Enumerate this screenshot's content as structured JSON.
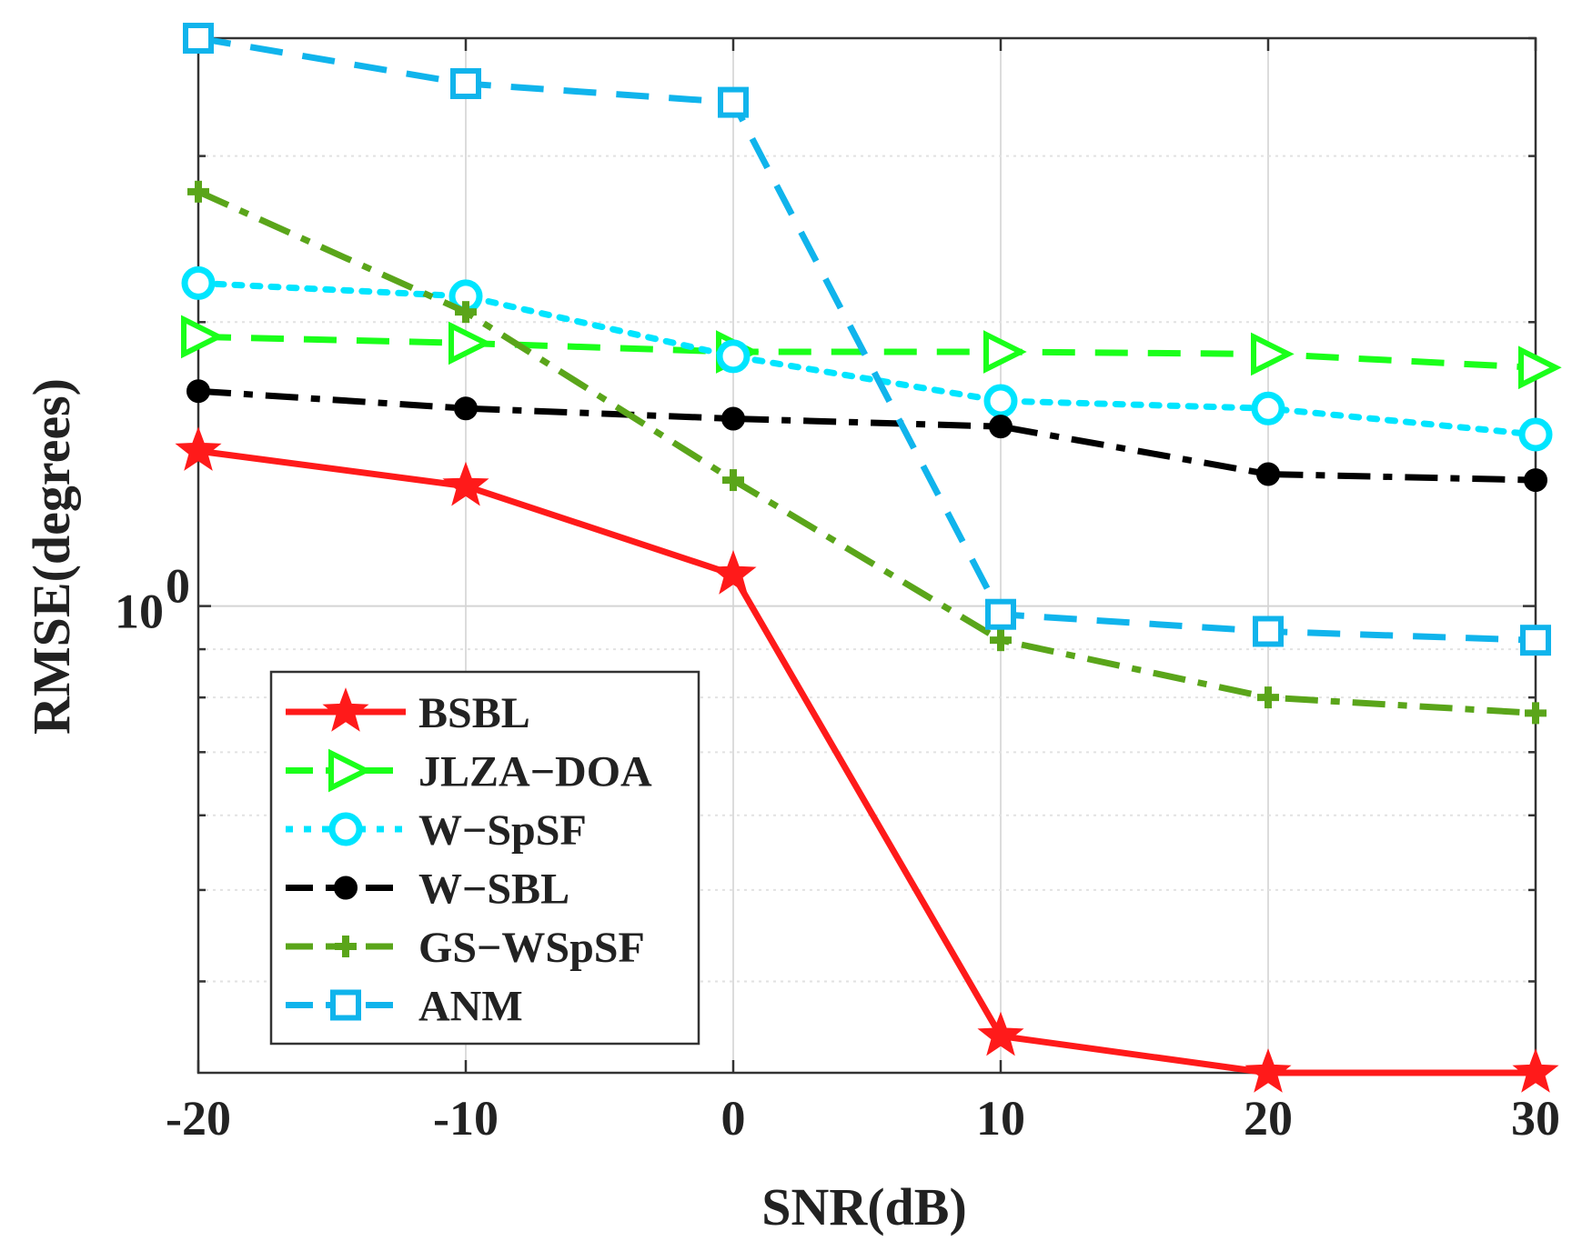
{
  "chart_data": {
    "type": "line",
    "title": "",
    "xlabel": "SNR(dB)",
    "ylabel": "RMSE(degrees)",
    "yscale": "log",
    "x": [
      -20,
      -10,
      0,
      10,
      20,
      30
    ],
    "xlim": [
      -20,
      30
    ],
    "ylim": [
      0.32,
      4.0
    ],
    "xticks": [
      -20,
      -10,
      0,
      10,
      20,
      30
    ],
    "xtick_labels": [
      "-20",
      "-10",
      "0",
      "10",
      "20",
      "30"
    ],
    "yticks": [
      1
    ],
    "ytick_labels": [
      {
        "base": "10",
        "exp": "0"
      }
    ],
    "grid": true,
    "legend": "bottom-left",
    "series": [
      {
        "name": "BSBL",
        "color": "#ff1a1a",
        "marker": "star",
        "dash": "solid",
        "values": [
          1.46,
          1.34,
          1.08,
          0.35,
          0.32,
          0.32
        ]
      },
      {
        "name": "JLZA−DOA",
        "color": "#1aff1a",
        "marker": "triangle-right",
        "dash": "dash",
        "values": [
          1.93,
          1.9,
          1.86,
          1.86,
          1.85,
          1.79
        ]
      },
      {
        "name": "W−SpSF",
        "color": "#00e5ff",
        "marker": "circle",
        "dash": "dot",
        "values": [
          2.2,
          2.13,
          1.84,
          1.65,
          1.62,
          1.52
        ]
      },
      {
        "name": "W−SBL",
        "color": "#000000",
        "marker": "dot",
        "dash": "dashdot",
        "values": [
          1.69,
          1.62,
          1.58,
          1.55,
          1.38,
          1.36
        ]
      },
      {
        "name": "GS−WSpSF",
        "color": "#5aa51a",
        "marker": "plus",
        "dash": "dashdot",
        "values": [
          2.75,
          2.05,
          1.36,
          0.92,
          0.8,
          0.77
        ]
      },
      {
        "name": "ANM",
        "color": "#10b4ec",
        "marker": "square",
        "dash": "dash",
        "values": [
          4.0,
          3.58,
          3.42,
          0.98,
          0.94,
          0.92
        ]
      }
    ]
  }
}
